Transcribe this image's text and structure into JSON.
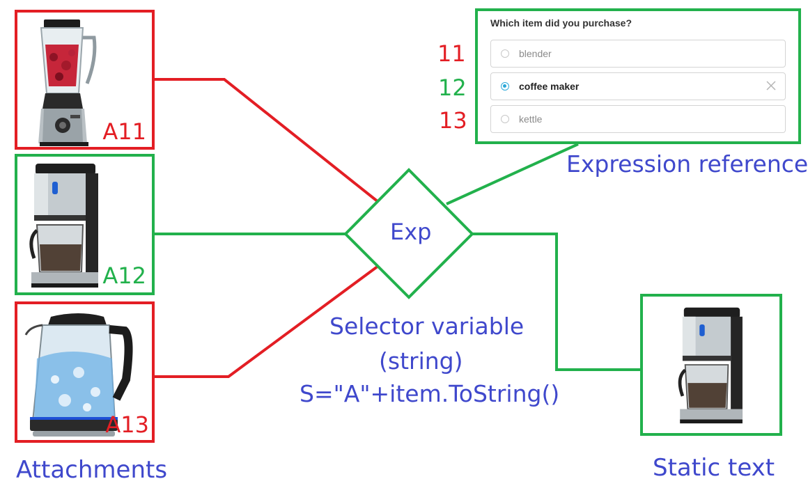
{
  "colors": {
    "red": "#e31e24",
    "green": "#22b14c",
    "blue_text": "#3f48cc",
    "radio_accent": "#2aa8d8"
  },
  "attachments": {
    "heading": "Attachments",
    "items": [
      {
        "label": "A11",
        "image": "blender-image",
        "state": "not-selected"
      },
      {
        "label": "A12",
        "image": "coffee-maker-image",
        "state": "selected"
      },
      {
        "label": "A13",
        "image": "kettle-image",
        "state": "not-selected"
      }
    ]
  },
  "expression": {
    "node_label": "Exp",
    "reference_caption": "Expression reference",
    "selector_caption_line1": "Selector variable",
    "selector_caption_line2": "(string)",
    "selector_caption_line3": "S=\"A\"+item.ToString()"
  },
  "form": {
    "question": "Which item did you purchase?",
    "options": [
      {
        "number": "11",
        "label": "blender",
        "selected": false
      },
      {
        "number": "12",
        "label": "coffee maker",
        "selected": true
      },
      {
        "number": "13",
        "label": "kettle",
        "selected": false
      }
    ]
  },
  "static_text": {
    "caption": "Static text",
    "image": "coffee-maker-image"
  }
}
